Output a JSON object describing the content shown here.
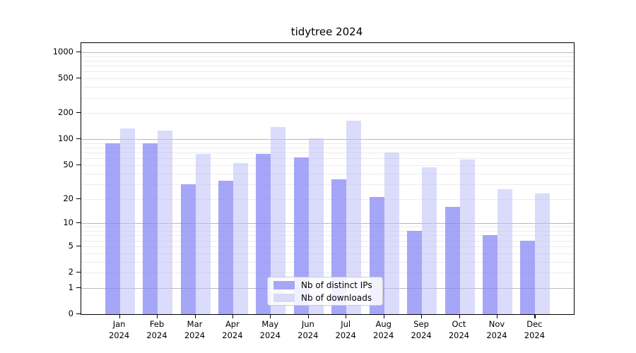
{
  "chart_data": {
    "type": "bar",
    "title": "tidytree 2024",
    "xlabel": "",
    "ylabel": "",
    "year_label": "2024",
    "categories": [
      "Jan",
      "Feb",
      "Mar",
      "Apr",
      "May",
      "Jun",
      "Jul",
      "Aug",
      "Sep",
      "Oct",
      "Nov",
      "Dec"
    ],
    "series": [
      {
        "name": "Nb of distinct IPs",
        "color": "#a6a6f4",
        "fill": "rgba(136,136,245,0.75)",
        "values": [
          89,
          89,
          30,
          33,
          67,
          61,
          34,
          21,
          8,
          16,
          7,
          6
        ]
      },
      {
        "name": "Nb of downloads",
        "color": "#d9d9f8",
        "fill": "rgba(190,190,248,0.55)",
        "values": [
          134,
          126,
          67,
          53,
          139,
          103,
          165,
          70,
          47,
          58,
          26,
          23
        ]
      }
    ],
    "yscale": "log1p",
    "yticks": [
      0,
      1,
      2,
      5,
      10,
      20,
      50,
      100,
      200,
      500,
      1000
    ],
    "ylim": [
      0,
      1275
    ],
    "grid": true,
    "legend_position": "lower center"
  },
  "grid_colors": {
    "major": "#b9b9b9",
    "minor": "#ececec"
  }
}
